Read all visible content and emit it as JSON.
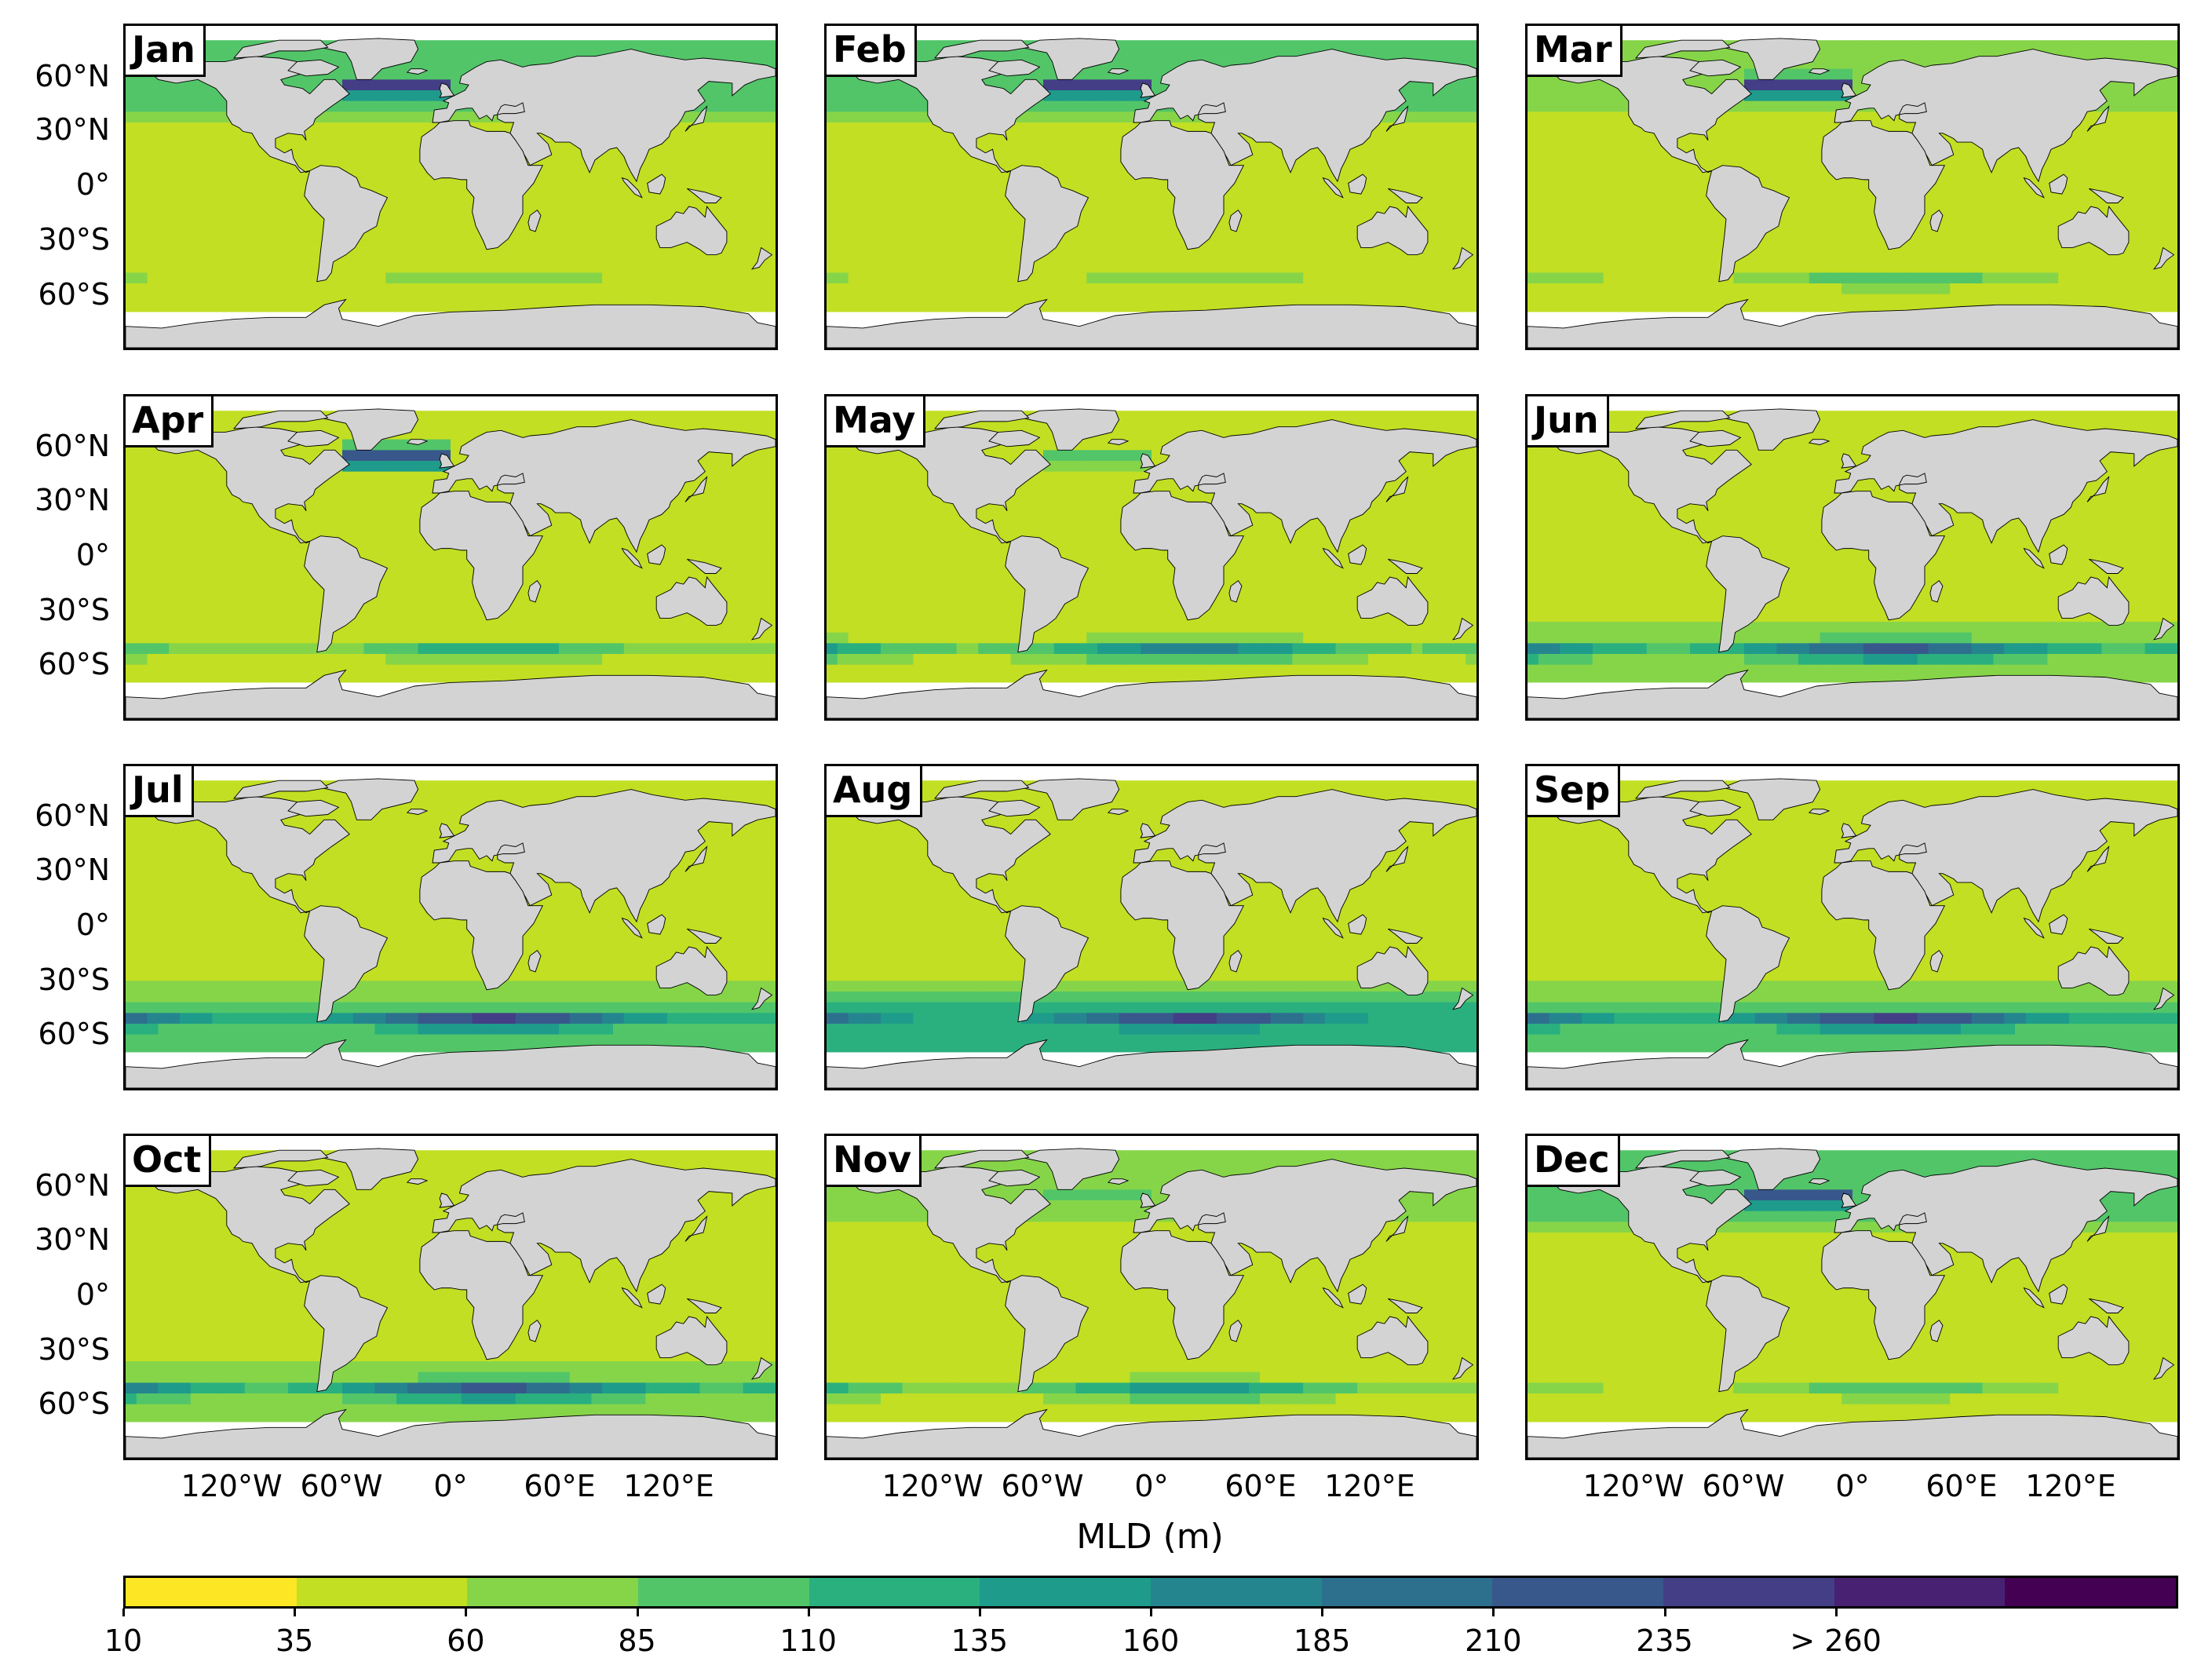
{
  "panels": [
    {
      "label": "Jan"
    },
    {
      "label": "Feb"
    },
    {
      "label": "Mar"
    },
    {
      "label": "Apr"
    },
    {
      "label": "May"
    },
    {
      "label": "Jun"
    },
    {
      "label": "Jul"
    },
    {
      "label": "Aug"
    },
    {
      "label": "Sep"
    },
    {
      "label": "Oct"
    },
    {
      "label": "Nov"
    },
    {
      "label": "Dec"
    }
  ],
  "y_ticks": [
    "60°N",
    "30°N",
    "0°",
    "30°S",
    "60°S"
  ],
  "x_ticks": [
    "120°W",
    "60°W",
    "0°",
    "60°E",
    "120°E"
  ],
  "colorbar": {
    "label": "MLD (m)",
    "tick_labels": [
      "10",
      "35",
      "60",
      "85",
      "110",
      "135",
      "160",
      "185",
      "210",
      "235",
      "> 260"
    ],
    "colors": [
      "#fde725",
      "#c2df23",
      "#86d549",
      "#52c569",
      "#2ab07f",
      "#1e9b8a",
      "#25858e",
      "#2d708e",
      "#38588c",
      "#433e85",
      "#482173",
      "#440154"
    ]
  },
  "chart_data": {
    "type": "heatmap",
    "title": "",
    "panels": [
      "Jan",
      "Feb",
      "Mar",
      "Apr",
      "May",
      "Jun",
      "Jul",
      "Aug",
      "Sep",
      "Oct",
      "Nov",
      "Dec"
    ],
    "xlabel": "",
    "ylabel": "",
    "colorbar_label": "MLD (m)",
    "colorbar_bounds": [
      10,
      35,
      60,
      85,
      110,
      135,
      160,
      185,
      210,
      235,
      260
    ],
    "colorbar_max_label": "> 260",
    "x_ticks": [
      "120°W",
      "60°W",
      "0°",
      "60°E",
      "120°E"
    ],
    "y_ticks": [
      "60°N",
      "30°N",
      "0°",
      "30°S",
      "60°S"
    ],
    "land_color": "#d3d3d3",
    "features": {
      "Jan": {
        "north_atlantic_max": 260,
        "southern_ocean": 85,
        "tropics": 35
      },
      "Feb": {
        "north_atlantic_max": 260,
        "southern_ocean": 85,
        "tropics": 35
      },
      "Mar": {
        "north_atlantic_max": 260,
        "southern_ocean": 110,
        "tropics": 35
      },
      "Apr": {
        "north_atlantic_max": 235,
        "southern_ocean": 135,
        "tropics": 35
      },
      "May": {
        "north_atlantic_max": 110,
        "southern_ocean": 185,
        "tropics": 35
      },
      "Jun": {
        "north_atlantic_max": 35,
        "southern_ocean": 235,
        "tropics": 35
      },
      "Jul": {
        "north_atlantic_max": 10,
        "southern_ocean": 260,
        "tropics": 35
      },
      "Aug": {
        "north_atlantic_max": 10,
        "southern_ocean": 260,
        "tropics": 35
      },
      "Sep": {
        "north_atlantic_max": 35,
        "southern_ocean": 260,
        "tropics": 35
      },
      "Oct": {
        "north_atlantic_max": 60,
        "southern_ocean": 235,
        "tropics": 35
      },
      "Nov": {
        "north_atlantic_max": 110,
        "southern_ocean": 160,
        "tropics": 35
      },
      "Dec": {
        "north_atlantic_max": 235,
        "southern_ocean": 110,
        "tropics": 35
      }
    }
  }
}
